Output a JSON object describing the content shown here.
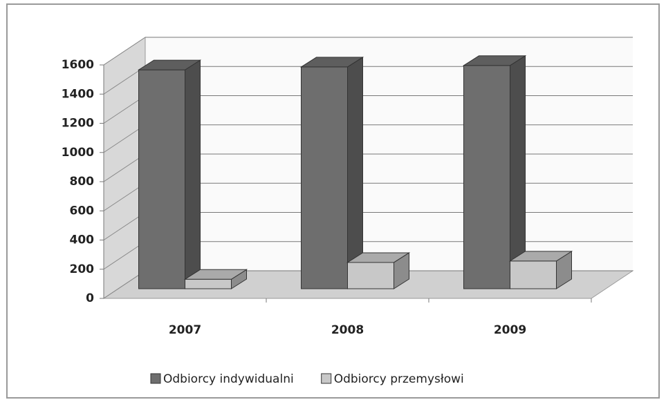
{
  "chart_data": {
    "type": "bar3d",
    "categories": [
      "2007",
      "2008",
      "2009"
    ],
    "series": [
      {
        "name": "Odbiorcy indywidualni",
        "color": "#6e6e6e",
        "values": [
          1500,
          1520,
          1530
        ]
      },
      {
        "name": "Odbiorcy przemysłowi",
        "color": "#c8c8c8",
        "values": [
          65,
          180,
          190
        ]
      }
    ],
    "ylim": [
      0,
      1600
    ],
    "yticks": [
      0,
      200,
      400,
      600,
      800,
      1000,
      1200,
      1400,
      1600
    ],
    "grid": true,
    "legend": "bottom"
  }
}
